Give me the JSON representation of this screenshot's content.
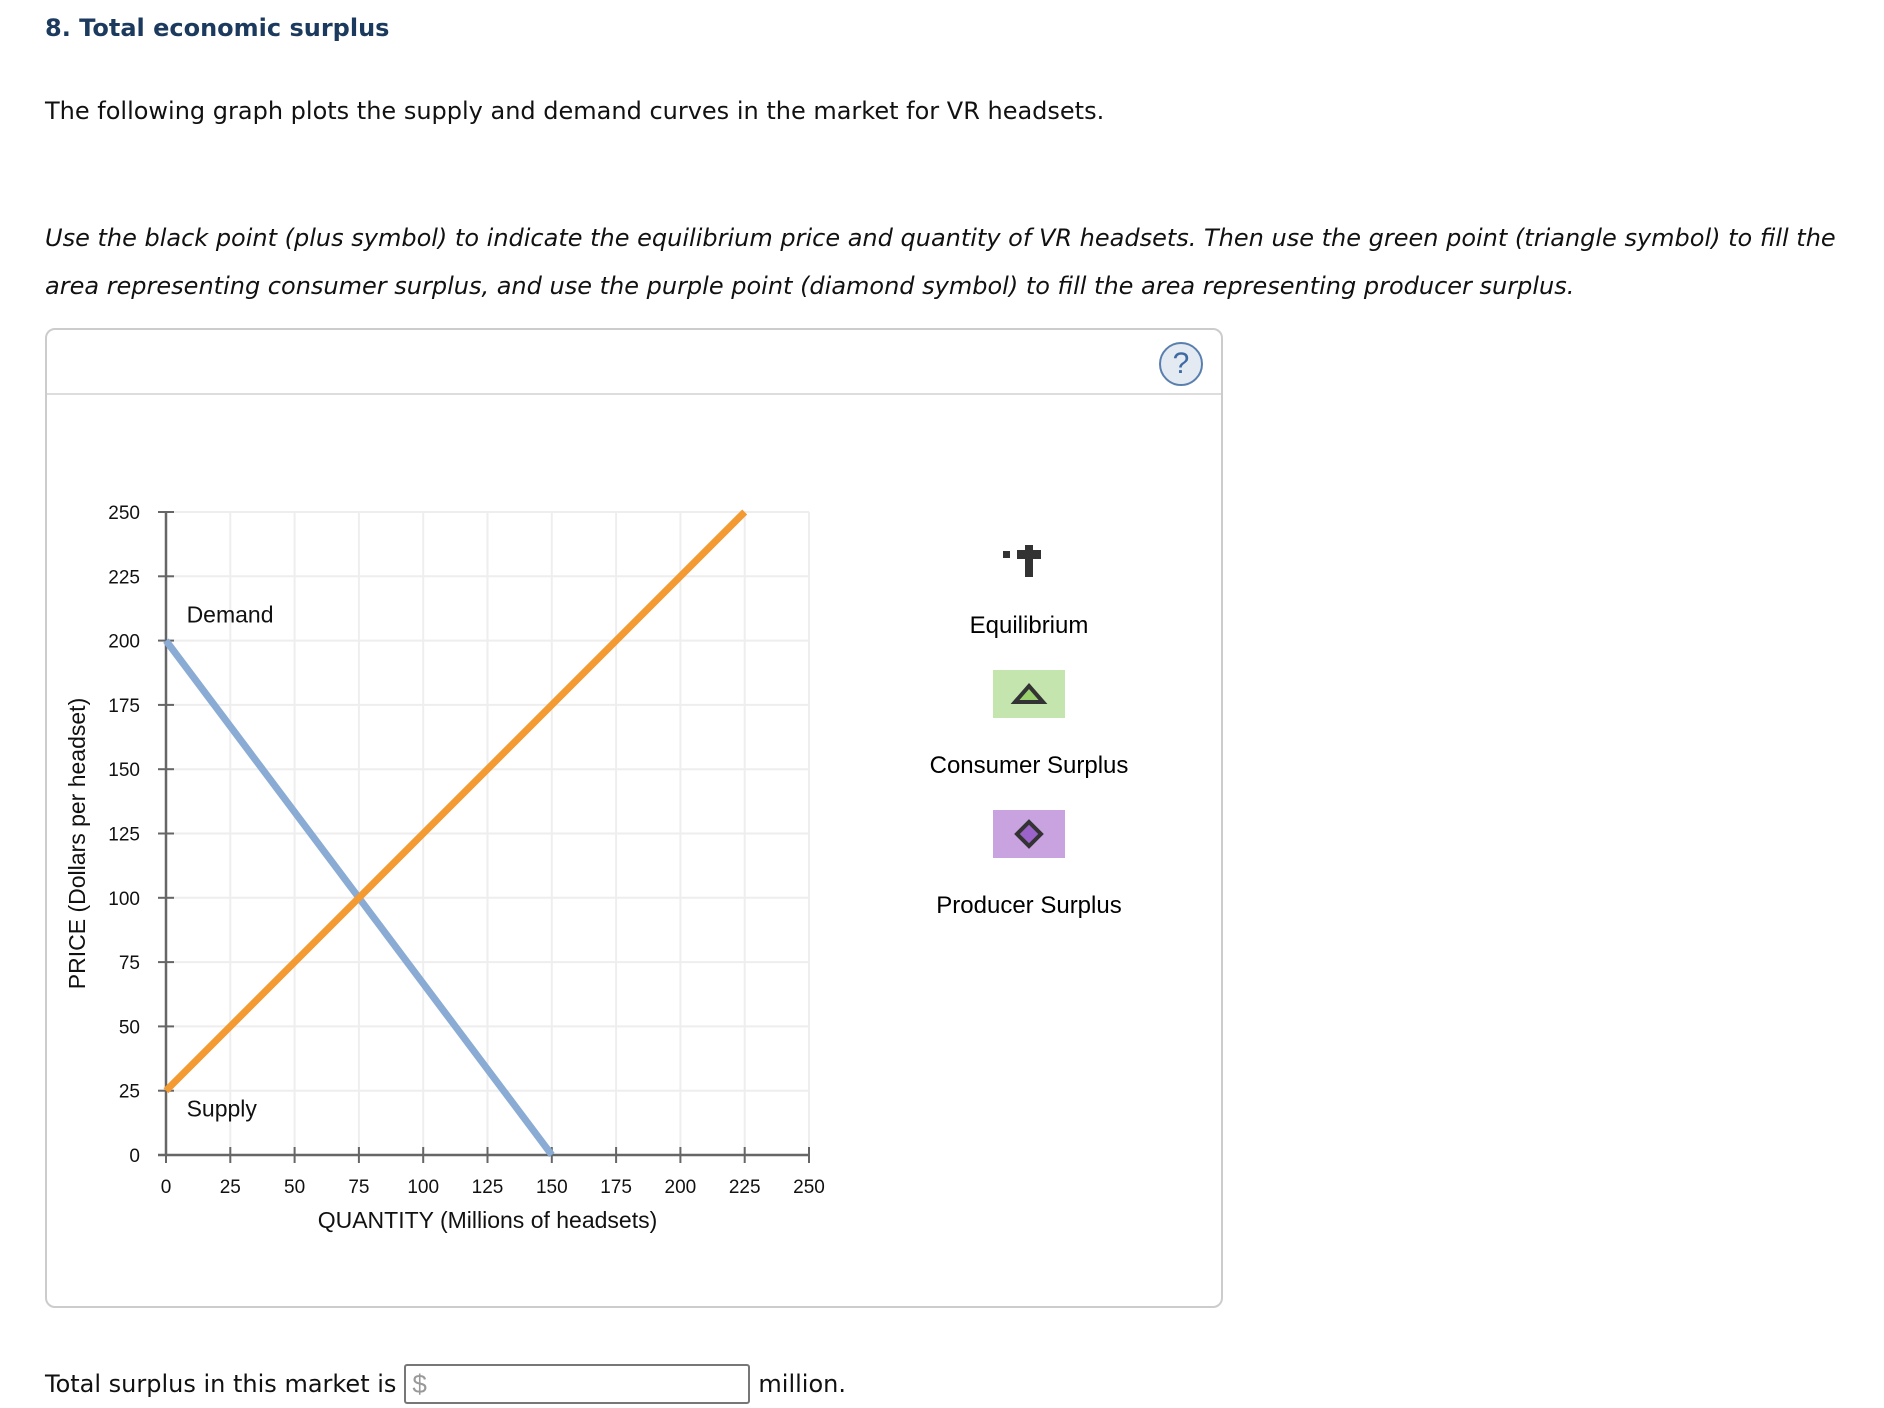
{
  "question": {
    "title": "8. Total economic surplus",
    "intro": "The following graph plots the supply and demand curves in the market for VR headsets.",
    "instructions": "Use the black point (plus symbol) to indicate the equilibrium price and quantity of VR headsets. Then use the green point (triangle symbol) to fill the area representing consumer surplus, and use the purple point (diamond symbol) to fill the area representing producer surplus."
  },
  "panel": {
    "help_icon": "question-mark-icon",
    "help_label": "?"
  },
  "legend": {
    "items": [
      {
        "label": "Equilibrium",
        "icon": "plus-icon",
        "color": "#333333"
      },
      {
        "label": "Consumer Surplus",
        "icon": "triangle-icon",
        "color": "#c4e5ad",
        "symbol_fill": "#9bd06f"
      },
      {
        "label": "Producer Surplus",
        "icon": "diamond-icon",
        "color": "#c8a3df",
        "symbol_fill": "#9b63c9"
      }
    ]
  },
  "answer": {
    "prefix": "Total surplus in this market is",
    "currency": "$",
    "value": "",
    "suffix": "million."
  },
  "chart_data": {
    "type": "line",
    "title": "",
    "xlabel": "QUANTITY (Millions of headsets)",
    "ylabel": "PRICE (Dollars per headset)",
    "xlim": [
      0,
      250
    ],
    "ylim": [
      0,
      250
    ],
    "xticks": [
      0,
      25,
      50,
      75,
      100,
      125,
      150,
      175,
      200,
      225,
      250
    ],
    "yticks": [
      0,
      25,
      50,
      75,
      100,
      125,
      150,
      175,
      200,
      225,
      250
    ],
    "grid": true,
    "series": [
      {
        "name": "Demand",
        "color": "#8aabd3",
        "points": [
          [
            0,
            200
          ],
          [
            150,
            0
          ]
        ]
      },
      {
        "name": "Supply",
        "color": "#f39a32",
        "points": [
          [
            0,
            25
          ],
          [
            225,
            250
          ]
        ]
      }
    ],
    "annotations": [
      {
        "text": "Demand",
        "x": 8,
        "y": 207
      },
      {
        "text": "Supply",
        "x": 8,
        "y": 15
      }
    ],
    "equilibrium": {
      "quantity": 75,
      "price": 100
    }
  }
}
